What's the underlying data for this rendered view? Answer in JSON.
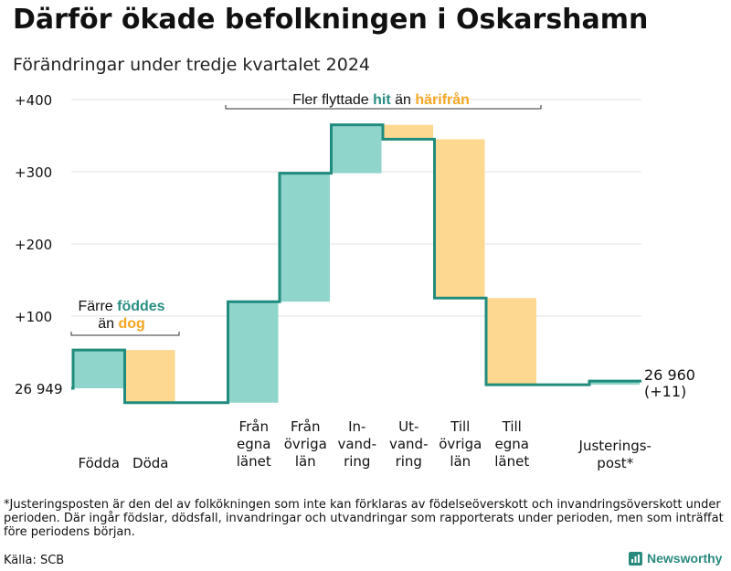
{
  "title": "Därför ökade befolkningen i Oskarshamn",
  "subtitle": "Förändringar under tredje kvartalet 2024",
  "footnote": "*Justeringsposten är den del av folkökningen som inte kan förklaras av födelseöverskott och invandringsöverskott under perioden. Där ingår födslar, dödsfall, invandringar och utvandringar som rapporterats under perioden, men som inträffat före periodens början.",
  "source": "Källa: SCB",
  "brand": "Newsworthy",
  "chart_data": {
    "type": "waterfall",
    "start_value": 26949,
    "end_value": 26960,
    "end_label": "26 960",
    "end_change_label": "(+11)",
    "baseline_label": "26 949",
    "y_ticks": [
      {
        "value": 100,
        "label": "+100"
      },
      {
        "value": 200,
        "label": "+200"
      },
      {
        "value": 300,
        "label": "+300"
      },
      {
        "value": 400,
        "label": "+400"
      }
    ],
    "ylim": [
      -20,
      410
    ],
    "steps": [
      {
        "label": [
          "Födda"
        ],
        "change": 53,
        "kind": "positive"
      },
      {
        "label": [
          "Döda"
        ],
        "change": -73,
        "kind": "negative"
      },
      {
        "label": [],
        "change": 0,
        "kind": "gap"
      },
      {
        "label": [
          "Från",
          "egna",
          "länet"
        ],
        "change": 140,
        "kind": "positive"
      },
      {
        "label": [
          "Från",
          "övriga",
          "län"
        ],
        "change": 178,
        "kind": "positive"
      },
      {
        "label": [
          "In-",
          "vand-",
          "ring"
        ],
        "change": 67,
        "kind": "positive"
      },
      {
        "label": [
          "Ut-",
          "vand-",
          "ring"
        ],
        "change": -20,
        "kind": "negative"
      },
      {
        "label": [
          "Till",
          "övriga",
          "län"
        ],
        "change": -220,
        "kind": "negative"
      },
      {
        "label": [
          "Till",
          "egna",
          "länet"
        ],
        "change": -120,
        "kind": "negative"
      },
      {
        "label": [],
        "change": 0,
        "kind": "gap"
      },
      {
        "label": [
          "Justerings-",
          "post*"
        ],
        "change": 5,
        "kind": "positive"
      }
    ],
    "annotations": [
      {
        "id": "born-died",
        "lines": [
          [
            {
              "text": "Färre ",
              "color": "#111111"
            },
            {
              "text": "föddes",
              "color": "#2a8f84",
              "bold": true
            }
          ],
          [
            {
              "text": "än ",
              "color": "#111111"
            },
            {
              "text": "dog",
              "color": "#f5a623",
              "bold": true
            }
          ]
        ]
      },
      {
        "id": "moved",
        "lines": [
          [
            {
              "text": "Fler flyttade ",
              "color": "#111111"
            },
            {
              "text": "hit",
              "color": "#2a8f84",
              "bold": true
            },
            {
              "text": "  än ",
              "color": "#111111"
            },
            {
              "text": "härifrån",
              "color": "#f5a623",
              "bold": true
            }
          ]
        ]
      }
    ],
    "colors": {
      "positive": "#8fd5cb",
      "negative": "#fcd891",
      "line": "#1f8c7e",
      "grid": "#e0e0e0",
      "teal_text": "#2a8f84",
      "orange_text": "#f5a623"
    }
  }
}
